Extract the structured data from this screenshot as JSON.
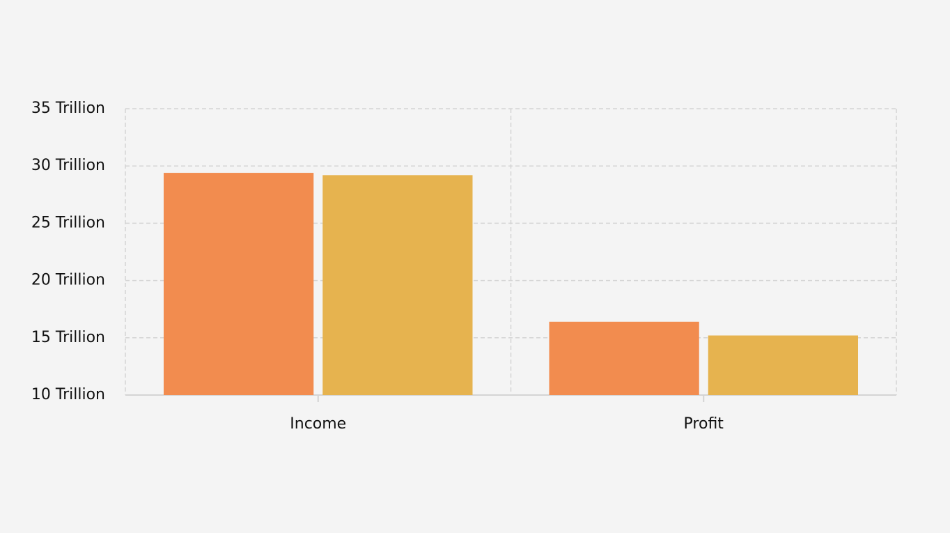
{
  "chart_data": {
    "type": "bar",
    "categories": [
      "Income",
      "Profit"
    ],
    "series": [
      {
        "color": "#f28c4f",
        "values": [
          29400000000000,
          16400000000000
        ]
      },
      {
        "color": "#e6b34f",
        "values": [
          29200000000000,
          15200000000000
        ]
      }
    ],
    "ylim": [
      10000000000000,
      35000000000000
    ],
    "yticks": [
      {
        "value": 10000000000000,
        "label": "10 Trillion"
      },
      {
        "value": 15000000000000,
        "label": "15 Trillion"
      },
      {
        "value": 20000000000000,
        "label": "20 Trillion"
      },
      {
        "value": 25000000000000,
        "label": "25 Trillion"
      },
      {
        "value": 30000000000000,
        "label": "30 Trillion"
      },
      {
        "value": 35000000000000,
        "label": "35 Trillion"
      }
    ],
    "grid": true
  }
}
